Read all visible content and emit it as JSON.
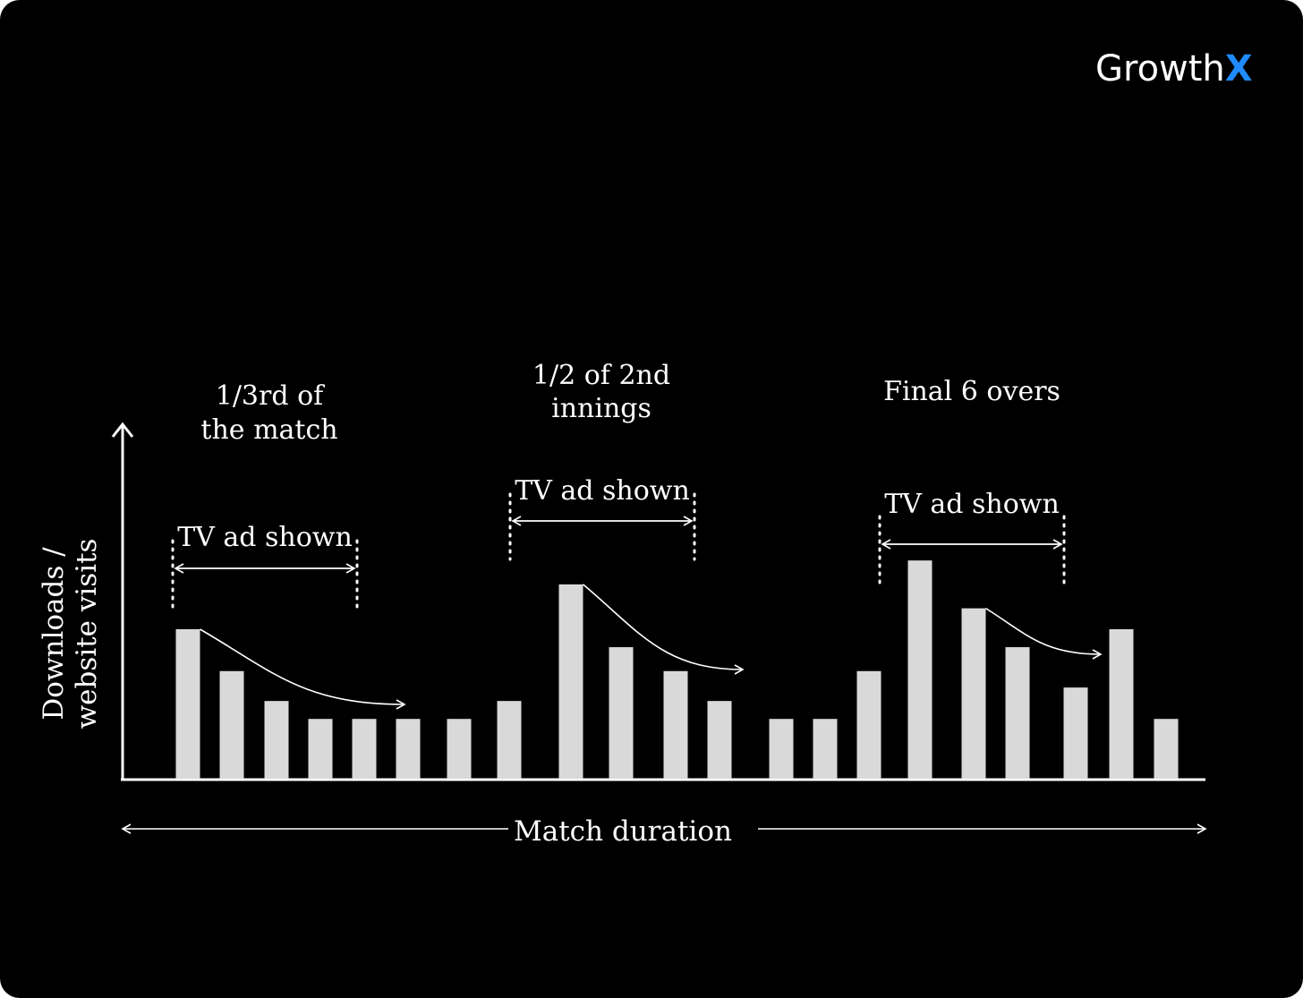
{
  "brand": {
    "name_main": "Growth",
    "name_accent": "X",
    "accent_color": "#1f8bff"
  },
  "colors": {
    "background": "#000000",
    "bar": "#d9d9d9",
    "line": "#ffffff"
  },
  "chart_data": {
    "type": "bar",
    "ylabel_line1": "Downloads /",
    "ylabel_line2": "website visits",
    "xlabel": "Match duration",
    "values": [
      100,
      72,
      52,
      40,
      40,
      40,
      40,
      52,
      130,
      88,
      72,
      52,
      40,
      40,
      72,
      146,
      114,
      88,
      61,
      100,
      40
    ],
    "ylim": [
      0,
      240
    ],
    "annotations": [
      {
        "period_line1": "1/3rd of",
        "period_line2": "the match",
        "ad_label": "TV ad shown",
        "ad_start_bar": 0,
        "ad_end_bar": 4,
        "decay_from_bar": 0,
        "decay_to_bar": 5
      },
      {
        "period_line1": "1/2 of 2nd",
        "period_line2": "innings",
        "ad_label": "TV ad shown",
        "ad_start_bar": 7,
        "ad_end_bar": 10,
        "decay_from_bar": 8,
        "decay_to_bar": 11
      },
      {
        "period_line1": "Final 6 overs",
        "period_line2": "",
        "ad_label": "TV ad shown",
        "ad_start_bar": 14,
        "ad_end_bar": 18,
        "decay_from_bar": 16,
        "decay_to_bar": 18
      }
    ]
  }
}
